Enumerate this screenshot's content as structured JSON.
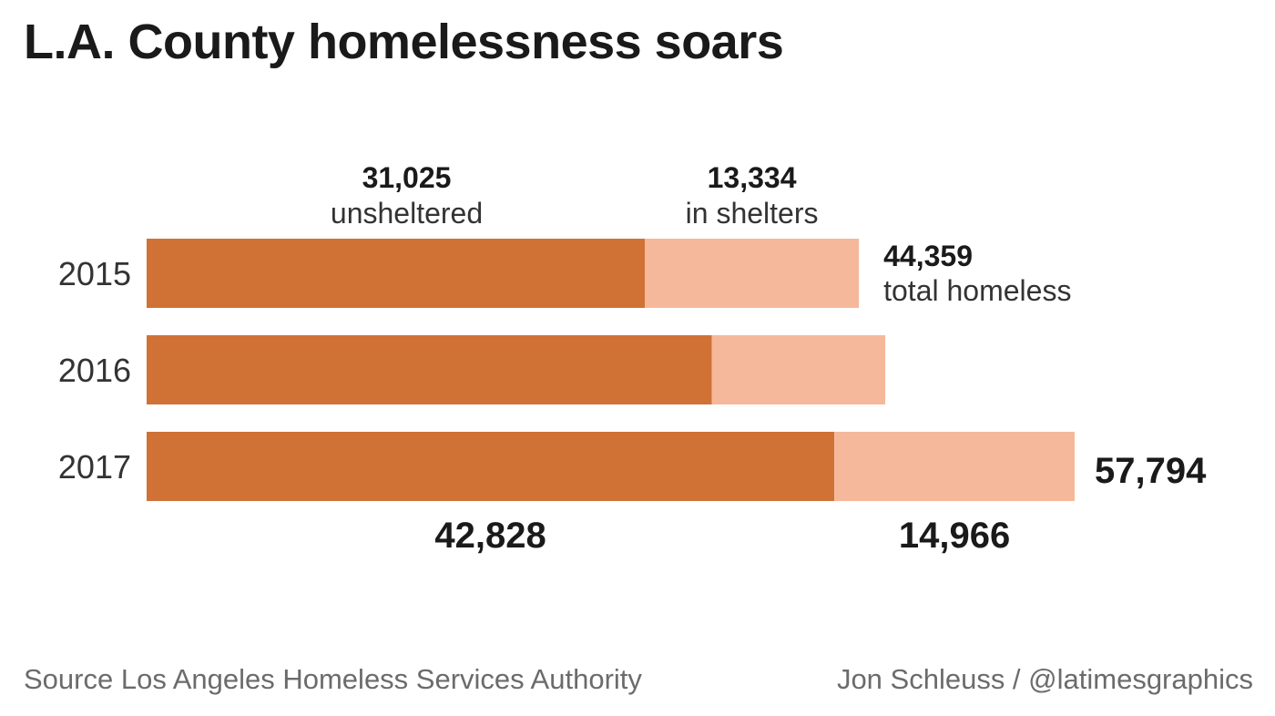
{
  "title": "L.A. County homelessness soars",
  "source": "Source Los Angeles Homeless Services Authority",
  "credit": "Jon Schleuss / @latimesgraphics",
  "colors": {
    "unsheltered": "#d07236",
    "sheltered": "#f6b89b",
    "text": "#1a1a1a",
    "label": "#333333"
  },
  "chart_data": {
    "type": "bar",
    "orientation": "horizontal",
    "stacked": true,
    "categories": [
      "2015",
      "2016",
      "2017"
    ],
    "series": [
      {
        "name": "unsheltered",
        "values": [
          31025,
          35200,
          42828
        ]
      },
      {
        "name": "in shelters",
        "values": [
          13334,
          10800,
          14966
        ]
      }
    ],
    "xlim": [
      0,
      60000
    ],
    "grid": false,
    "annotations": {
      "unsheltered_2015": {
        "value": "31,025",
        "label": "unsheltered"
      },
      "sheltered_2015": {
        "value": "13,334",
        "label": "in shelters"
      },
      "total_2015": {
        "value": "44,359",
        "label": "total homeless"
      },
      "total_2017": {
        "value": "57,794"
      },
      "unsheltered_2017": {
        "value": "42,828"
      },
      "sheltered_2017": {
        "value": "14,966"
      }
    }
  }
}
